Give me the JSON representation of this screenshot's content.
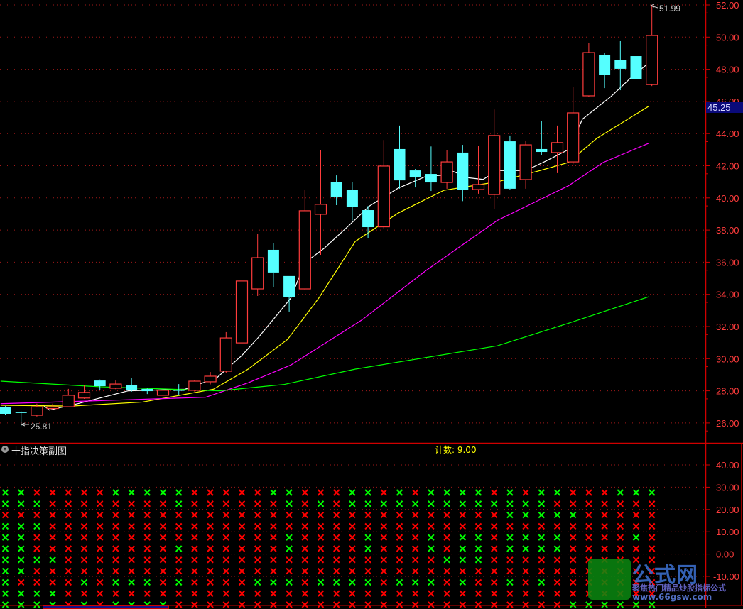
{
  "colors": {
    "up": "#ff3c3c",
    "down": "#55ffff",
    "ma5": "#ffffff",
    "ma10": "#ffff00",
    "ma20": "#ff00ff",
    "ma60": "#00ff00",
    "grid": "#a01818",
    "x_green": "#00ff00",
    "x_red": "#ff0000"
  },
  "chart_data": {
    "type": "candlestick",
    "ylim": [
      25.5,
      52.2
    ],
    "y_ticks": [
      "52.00",
      "50.00",
      "48.00",
      "46.00",
      "44.00",
      "42.00",
      "40.00",
      "38.00",
      "36.00",
      "34.00",
      "32.00",
      "30.00",
      "28.00",
      "26.00"
    ],
    "candles": [
      [
        27.01,
        27.05,
        26.48,
        26.57
      ],
      [
        26.7,
        26.72,
        25.81,
        26.62
      ],
      [
        26.48,
        27.2,
        26.4,
        27.0
      ],
      [
        26.9,
        27.2,
        26.85,
        27.0
      ],
      [
        27.01,
        28.12,
        27.0,
        27.72
      ],
      [
        27.55,
        28.38,
        27.5,
        27.9
      ],
      [
        28.64,
        28.7,
        28.03,
        28.29
      ],
      [
        28.16,
        28.64,
        28.1,
        28.42
      ],
      [
        28.38,
        28.82,
        27.94,
        28.07
      ],
      [
        28.12,
        28.15,
        27.8,
        27.98
      ],
      [
        27.72,
        28.1,
        27.7,
        28.03
      ],
      [
        28.05,
        28.42,
        27.76,
        28.0
      ],
      [
        28.03,
        28.65,
        27.95,
        28.6
      ],
      [
        28.56,
        29.17,
        28.4,
        28.91
      ],
      [
        29.22,
        31.65,
        29.1,
        31.29
      ],
      [
        30.98,
        35.27,
        30.9,
        34.83
      ],
      [
        34.34,
        37.74,
        33.9,
        36.28
      ],
      [
        36.77,
        37.2,
        34.47,
        35.36
      ],
      [
        35.14,
        35.14,
        32.93,
        33.81
      ],
      [
        34.34,
        40.52,
        34.3,
        39.2
      ],
      [
        38.98,
        42.95,
        36.46,
        39.6
      ],
      [
        41.0,
        41.4,
        39.55,
        40.08
      ],
      [
        40.52,
        41.0,
        38.6,
        39.42
      ],
      [
        39.24,
        39.5,
        37.5,
        38.18
      ],
      [
        38.2,
        43.6,
        38.1,
        41.98
      ],
      [
        43.04,
        44.5,
        40.57,
        41.09
      ],
      [
        41.71,
        41.8,
        40.65,
        41.27
      ],
      [
        41.49,
        43.2,
        40.43,
        40.96
      ],
      [
        40.96,
        42.99,
        40.57,
        42.24
      ],
      [
        42.82,
        43.3,
        39.8,
        40.52
      ],
      [
        40.52,
        43.26,
        40.26,
        40.83
      ],
      [
        40.21,
        45.5,
        39.33,
        43.88
      ],
      [
        43.52,
        43.88,
        40.5,
        40.57
      ],
      [
        41.14,
        43.57,
        40.57,
        43.3
      ],
      [
        43.04,
        44.76,
        42.68,
        42.86
      ],
      [
        42.82,
        44.5,
        41.54,
        43.44
      ],
      [
        42.24,
        46.88,
        42.1,
        45.29
      ],
      [
        46.35,
        49.62,
        46.3,
        49.04
      ],
      [
        48.91,
        49.04,
        46.83,
        47.67
      ],
      [
        48.6,
        49.75,
        46.7,
        48.03
      ],
      [
        48.82,
        49.0,
        45.73,
        47.4
      ],
      [
        47.05,
        51.99,
        46.96,
        50.1
      ]
    ],
    "ma_lines": [
      {
        "key": "ma5",
        "points": [
          [
            2.4,
            27.1
          ],
          [
            2.8,
            26.8
          ],
          [
            4.6,
            27.2
          ],
          [
            7.8,
            28.0
          ],
          [
            11.4,
            28.1
          ],
          [
            13.4,
            28.8
          ],
          [
            15,
            30.2
          ],
          [
            16.1,
            31.38
          ],
          [
            18.1,
            33.76
          ],
          [
            19,
            35.97
          ],
          [
            20.2,
            36.85
          ],
          [
            21.7,
            38.2
          ],
          [
            23.1,
            39.5
          ],
          [
            24.9,
            40.6
          ],
          [
            26.7,
            41.35
          ],
          [
            27.6,
            41.4
          ],
          [
            28,
            41.8
          ],
          [
            29.4,
            41.25
          ],
          [
            30.3,
            41.15
          ],
          [
            31.2,
            41.7
          ],
          [
            33,
            41.7
          ],
          [
            34.3,
            42.3
          ],
          [
            35.7,
            43.0
          ],
          [
            36.6,
            44.9
          ],
          [
            38.4,
            46.3
          ],
          [
            39.7,
            47.5
          ],
          [
            40.8,
            48.4
          ]
        ]
      },
      {
        "key": "ma10",
        "points": [
          [
            -0.3,
            27.1
          ],
          [
            4.2,
            27.05
          ],
          [
            8.7,
            27.3
          ],
          [
            13.2,
            28.1
          ],
          [
            15.4,
            29.35
          ],
          [
            17.9,
            31.2
          ],
          [
            19.9,
            33.8
          ],
          [
            22.2,
            37.3
          ],
          [
            24.9,
            39.05
          ],
          [
            27.8,
            40.47
          ],
          [
            31.2,
            41.0
          ],
          [
            33.9,
            41.7
          ],
          [
            35.7,
            42.2
          ],
          [
            37.5,
            43.7
          ],
          [
            40.8,
            45.7
          ]
        ]
      },
      {
        "key": "ma20",
        "points": [
          [
            -0.3,
            27.2
          ],
          [
            6.4,
            27.4
          ],
          [
            12.7,
            27.6
          ],
          [
            15.4,
            28.5
          ],
          [
            18.1,
            29.6
          ],
          [
            22.6,
            32.4
          ],
          [
            26.7,
            35.5
          ],
          [
            31.2,
            38.6
          ],
          [
            35.7,
            40.75
          ],
          [
            37.9,
            42.2
          ],
          [
            40.8,
            43.4
          ]
        ]
      },
      {
        "key": "ma60",
        "points": [
          [
            -0.3,
            28.6
          ],
          [
            6,
            28.25
          ],
          [
            13.6,
            28.0
          ],
          [
            17.7,
            28.4
          ],
          [
            22.2,
            29.35
          ],
          [
            31.2,
            30.8
          ],
          [
            35.7,
            32.2
          ],
          [
            40.8,
            33.85
          ]
        ]
      }
    ],
    "high_label": "51.99",
    "low_label": "25.81",
    "current_price": "45.25"
  },
  "sub_panel": {
    "title": "十指决策副图",
    "count_label": "计数: 9.00",
    "y_ticks": [
      "40.00",
      "30.00",
      "20.00",
      "10.00",
      "0.00",
      "-10.00"
    ],
    "x_grid": [
      "GGRRRRRGGGGGRRRRRGGRRRGGRGRGGGGRGRGGRRRGGG",
      "GGGRRRRRRRRGRRRRRRGRGRGGGGGGGGGGGGGRRRRRRR",
      "RRRRRRRRRRRRRRRRRRRRRRRRRRRRRRRRGGGGGRRRRR",
      "GGGRRRRRRRRRRRRRRRRRRRRRRRRRRRRRRRRRRRRRRR",
      "GGRRRRRRRRRRRRRRRRGRRRRGRRRGRGGRGGGGRRRRGR",
      "GGRRRRRRRRRGRRRRRRGRRRRGRRRGRGGRGGGGRRRRRR",
      "GGGGRRRRRRRRRRRRRRRRRRRRRRRRGGGRRRRRRRRRRR",
      "GGRRRRRRRRRRRRRRRRRRRRRRRRRRRRRRRRRRRRRRRR",
      "GRRRRGRGGGRGRRRRGGGRGGGGRGGGRGRRGRGRRRRRRR",
      "GGGGRRRRRRRRRRRRRRRRRRRRRRRRRRRRRRRRRRRRRR",
      "GGGGRGRGGGGRRRRRRRRRRRRRRRRRRRRRRRRRGGGGGG"
    ]
  },
  "watermark": {
    "name": "公式网",
    "tagline": "聚焦热门精品炒股指标公式",
    "url": "www.66gsw.com"
  }
}
